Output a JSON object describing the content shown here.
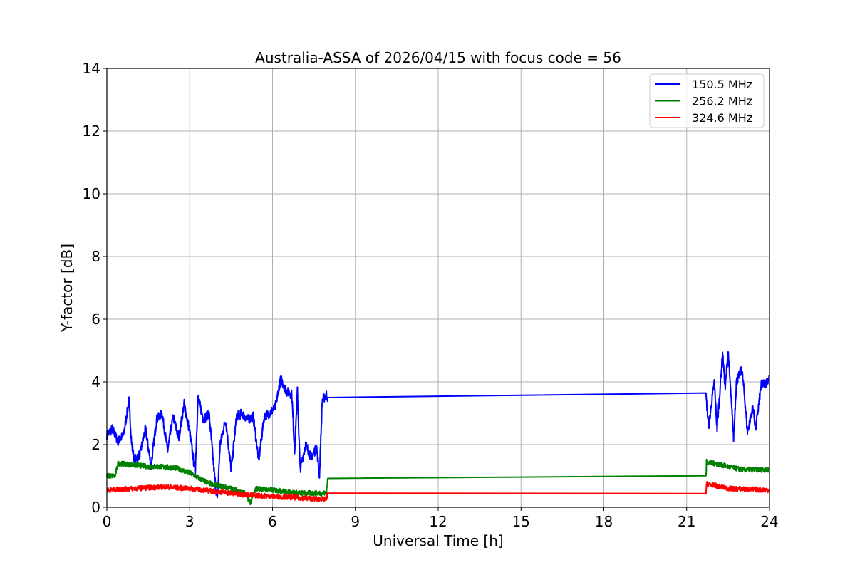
{
  "chart_data": {
    "type": "line",
    "title": "Australia-ASSA of 2026/04/15 with focus code = 56",
    "xlabel": "Universal Time [h]",
    "ylabel": "Y-factor [dB]",
    "xlim": [
      0,
      24
    ],
    "ylim": [
      0,
      14
    ],
    "xticks": [
      0,
      3,
      6,
      9,
      12,
      15,
      18,
      21,
      24
    ],
    "yticks": [
      0,
      2,
      4,
      6,
      8,
      10,
      12,
      14
    ],
    "xtick_labels": [
      "0",
      "3",
      "6",
      "9",
      "12",
      "15",
      "18",
      "21",
      "24"
    ],
    "ytick_labels": [
      "0",
      "2",
      "4",
      "6",
      "8",
      "10",
      "12",
      "14"
    ],
    "grid": true,
    "legend_position": "top-right",
    "series": [
      {
        "name": "150.5 MHz",
        "color": "#0000ff",
        "noise_amplitude_db": 0.15,
        "points": [
          [
            0,
            2.3
          ],
          [
            0.2,
            2.5
          ],
          [
            0.4,
            2.1
          ],
          [
            0.6,
            2.3
          ],
          [
            0.8,
            3.4
          ],
          [
            0.9,
            2.0
          ],
          [
            1.0,
            1.5
          ],
          [
            1.2,
            1.7
          ],
          [
            1.4,
            2.5
          ],
          [
            1.6,
            1.3
          ],
          [
            1.8,
            2.8
          ],
          [
            2.0,
            3.0
          ],
          [
            2.2,
            1.8
          ],
          [
            2.4,
            2.9
          ],
          [
            2.6,
            2.2
          ],
          [
            2.8,
            3.3
          ],
          [
            3.0,
            2.4
          ],
          [
            3.2,
            1.1
          ],
          [
            3.3,
            3.5
          ],
          [
            3.5,
            2.8
          ],
          [
            3.7,
            3.0
          ],
          [
            3.9,
            1.0
          ],
          [
            4.0,
            0.2
          ],
          [
            4.1,
            2.0
          ],
          [
            4.3,
            2.8
          ],
          [
            4.5,
            1.2
          ],
          [
            4.7,
            2.9
          ],
          [
            4.9,
            3.0
          ],
          [
            5.1,
            2.8
          ],
          [
            5.3,
            2.9
          ],
          [
            5.5,
            1.5
          ],
          [
            5.7,
            2.9
          ],
          [
            5.9,
            3.0
          ],
          [
            6.1,
            3.2
          ],
          [
            6.3,
            4.1
          ],
          [
            6.5,
            3.7
          ],
          [
            6.7,
            3.6
          ],
          [
            6.8,
            1.8
          ],
          [
            6.9,
            3.7
          ],
          [
            7.0,
            1.2
          ],
          [
            7.2,
            2.0
          ],
          [
            7.4,
            1.6
          ],
          [
            7.6,
            1.9
          ],
          [
            7.7,
            1.0
          ],
          [
            7.8,
            3.4
          ],
          [
            7.95,
            3.6
          ],
          [
            8.0,
            3.5
          ],
          [
            21.7,
            3.52
          ],
          [
            21.8,
            2.6
          ],
          [
            22.0,
            4.0
          ],
          [
            22.1,
            2.5
          ],
          [
            22.3,
            4.9
          ],
          [
            22.4,
            3.8
          ],
          [
            22.5,
            5.0
          ],
          [
            22.6,
            3.6
          ],
          [
            22.7,
            2.2
          ],
          [
            22.8,
            4.0
          ],
          [
            23.0,
            4.4
          ],
          [
            23.1,
            3.5
          ],
          [
            23.2,
            2.4
          ],
          [
            23.4,
            3.2
          ],
          [
            23.5,
            2.5
          ],
          [
            23.7,
            3.9
          ],
          [
            23.9,
            4.0
          ],
          [
            24.0,
            4.2
          ]
        ]
      },
      {
        "name": "256.2 MHz",
        "color": "#008000",
        "noise_amplitude_db": 0.08,
        "points": [
          [
            0,
            1.0
          ],
          [
            0.3,
            1.0
          ],
          [
            0.4,
            1.4
          ],
          [
            1.0,
            1.35
          ],
          [
            1.5,
            1.3
          ],
          [
            2.0,
            1.3
          ],
          [
            2.5,
            1.25
          ],
          [
            3.0,
            1.1
          ],
          [
            3.3,
            0.95
          ],
          [
            3.6,
            0.8
          ],
          [
            4.0,
            0.7
          ],
          [
            4.5,
            0.6
          ],
          [
            5.0,
            0.45
          ],
          [
            5.2,
            0.15
          ],
          [
            5.4,
            0.6
          ],
          [
            6.0,
            0.55
          ],
          [
            7.0,
            0.45
          ],
          [
            7.95,
            0.45
          ],
          [
            8.0,
            0.92
          ],
          [
            21.7,
            0.97
          ],
          [
            21.72,
            1.45
          ],
          [
            22.0,
            1.4
          ],
          [
            23.0,
            1.2
          ],
          [
            24.0,
            1.2
          ]
        ]
      },
      {
        "name": "324.6 MHz",
        "color": "#ff0000",
        "noise_amplitude_db": 0.08,
        "points": [
          [
            0,
            0.55
          ],
          [
            1,
            0.6
          ],
          [
            2,
            0.65
          ],
          [
            3,
            0.6
          ],
          [
            4,
            0.5
          ],
          [
            5,
            0.4
          ],
          [
            6,
            0.35
          ],
          [
            7,
            0.3
          ],
          [
            7.95,
            0.25
          ],
          [
            8.0,
            0.45
          ],
          [
            21.7,
            0.48
          ],
          [
            21.72,
            0.75
          ],
          [
            22.5,
            0.6
          ],
          [
            24.0,
            0.55
          ]
        ]
      }
    ]
  }
}
